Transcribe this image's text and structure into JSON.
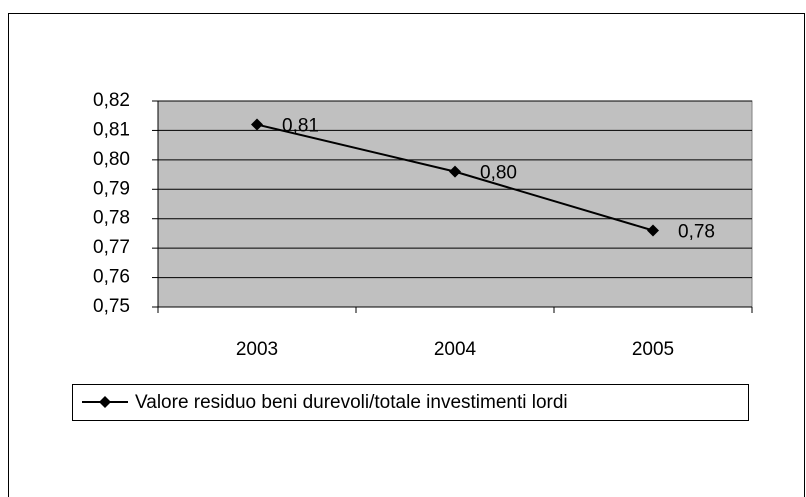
{
  "chart_data": {
    "type": "line",
    "categories": [
      "2003",
      "2004",
      "2005"
    ],
    "series": [
      {
        "name": "Valore residuo beni durevoli/totale investimenti lordi",
        "color": "#000000",
        "values": [
          0.812,
          0.796,
          0.776
        ],
        "value_labels": [
          "0,81",
          "0,80",
          "0,78"
        ]
      }
    ],
    "ylim": [
      0.75,
      0.82
    ],
    "yticks": [
      {
        "value": 0.75,
        "label": "0,75"
      },
      {
        "value": 0.76,
        "label": "0,76"
      },
      {
        "value": 0.77,
        "label": "0,77"
      },
      {
        "value": 0.78,
        "label": "0,78"
      },
      {
        "value": 0.79,
        "label": "0,79"
      },
      {
        "value": 0.8,
        "label": "0,80"
      },
      {
        "value": 0.81,
        "label": "0,81"
      },
      {
        "value": 0.82,
        "label": "0,82"
      }
    ],
    "grid": true,
    "plot_background": "#c0c0c0",
    "legend": "bottom"
  }
}
